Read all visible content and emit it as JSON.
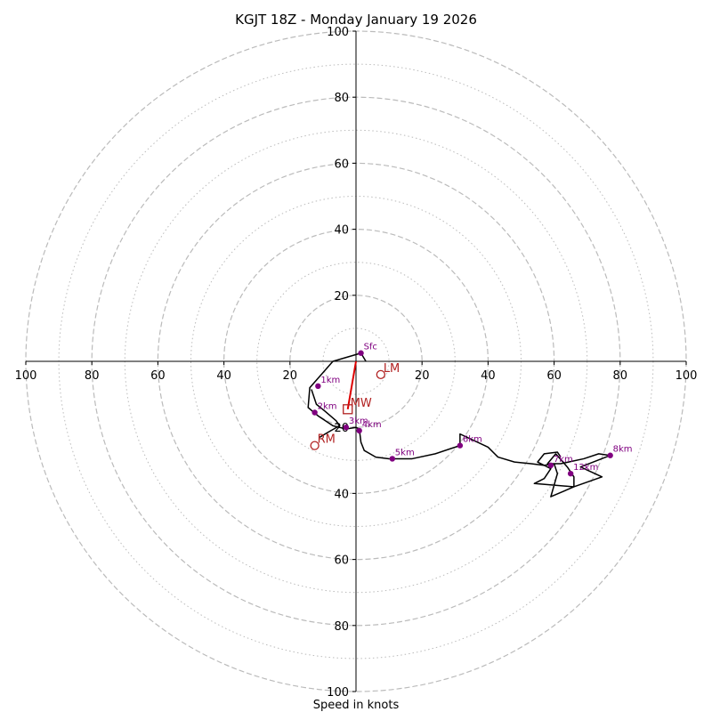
{
  "chart_data": {
    "type": "hodograph",
    "title": "KGJT 18Z - Monday January 19 2026",
    "xlabel": "Speed in knots",
    "range": [
      -100,
      100
    ],
    "x_tick_labels": [
      "100",
      "80",
      "60",
      "40",
      "20",
      "20",
      "40",
      "60",
      "80",
      "100"
    ],
    "x_tick_values": [
      -100,
      -80,
      -60,
      -40,
      -20,
      20,
      40,
      60,
      80,
      100
    ],
    "y_tick_labels": [
      "100",
      "80",
      "60",
      "40",
      "20",
      "20",
      "40",
      "60",
      "80",
      "100"
    ],
    "y_tick_values": [
      100,
      80,
      60,
      40,
      20,
      -20,
      -40,
      -60,
      -80,
      -100
    ],
    "ring_major": [
      20,
      40,
      60,
      80,
      100
    ],
    "ring_minor": [
      10,
      30,
      50,
      70,
      90
    ],
    "trace": [
      [
        3,
        0
      ],
      [
        1.5,
        2.5
      ],
      [
        -7,
        0
      ],
      [
        -14,
        -8
      ],
      [
        -14.5,
        -14
      ],
      [
        -11.5,
        -16.5
      ],
      [
        -7,
        -19.5
      ],
      [
        -3,
        -20.5
      ],
      [
        0,
        -20
      ],
      [
        1,
        -20.5
      ],
      [
        1.5,
        -24.5
      ],
      [
        2.5,
        -27
      ],
      [
        6,
        -29
      ],
      [
        10,
        -29.5
      ],
      [
        17,
        -29.5
      ],
      [
        24,
        -28
      ],
      [
        31.5,
        -25.5
      ],
      [
        31.5,
        -22
      ],
      [
        40,
        -26
      ],
      [
        43,
        -29
      ],
      [
        48,
        -30.5
      ],
      [
        53,
        -31
      ],
      [
        57,
        -31.5
      ],
      [
        60,
        -31
      ],
      [
        61,
        -34
      ],
      [
        59,
        -41
      ],
      [
        66,
        -38
      ],
      [
        66,
        -35
      ],
      [
        64,
        -32
      ],
      [
        60.5,
        -28
      ],
      [
        58,
        -31
      ],
      [
        62,
        -31
      ],
      [
        69,
        -29.5
      ],
      [
        73.5,
        -28
      ],
      [
        77,
        -28.5
      ],
      [
        68,
        -32
      ],
      [
        74.5,
        -35
      ],
      [
        66,
        -38
      ],
      [
        54,
        -37
      ],
      [
        57,
        -35.5
      ],
      [
        59,
        -32.5
      ],
      [
        55,
        -30.5
      ],
      [
        57,
        -28
      ],
      [
        61,
        -27.5
      ],
      [
        62,
        -29
      ]
    ],
    "trace_highlight": [
      [
        -13.5,
        -8.5
      ],
      [
        -12,
        -13
      ],
      [
        -9.5,
        -15
      ],
      [
        -6,
        -18
      ],
      [
        -5,
        -19.5
      ],
      [
        -8.5,
        -21.5
      ],
      [
        -11,
        -23
      ]
    ],
    "heights": [
      {
        "label": "Sfc",
        "u": 1.5,
        "v": 2.5
      },
      {
        "label": "1km",
        "u": -11.5,
        "v": -7.5
      },
      {
        "label": "2km",
        "u": -12.5,
        "v": -15.5
      },
      {
        "label": "3km",
        "u": -3,
        "v": -20
      },
      {
        "label": "4km",
        "u": 1,
        "v": -21
      },
      {
        "label": "5km",
        "u": 11,
        "v": -29.5
      },
      {
        "label": "6km",
        "u": 31.5,
        "v": -25.5
      },
      {
        "label": "7km",
        "u": 59,
        "v": -31.5
      },
      {
        "label": "8km",
        "u": 77,
        "v": -28.5
      },
      {
        "label": "12km",
        "u": 65,
        "v": -34
      }
    ],
    "motion_markers": [
      {
        "label": "LM",
        "u": 7.5,
        "v": -4,
        "shape": "circle"
      },
      {
        "label": "MW",
        "u": -2.5,
        "v": -14.5,
        "shape": "square"
      },
      {
        "label": "RM",
        "u": -12.5,
        "v": -25.5,
        "shape": "circle"
      }
    ],
    "shear_vector": {
      "from": [
        0,
        0
      ],
      "to": [
        -2.5,
        -14.5
      ]
    },
    "colors": {
      "trace": "#000000",
      "height_points": "#800080",
      "motion": "#b22222",
      "shear": "#dd0000",
      "rings": "#bbbbbb"
    }
  }
}
